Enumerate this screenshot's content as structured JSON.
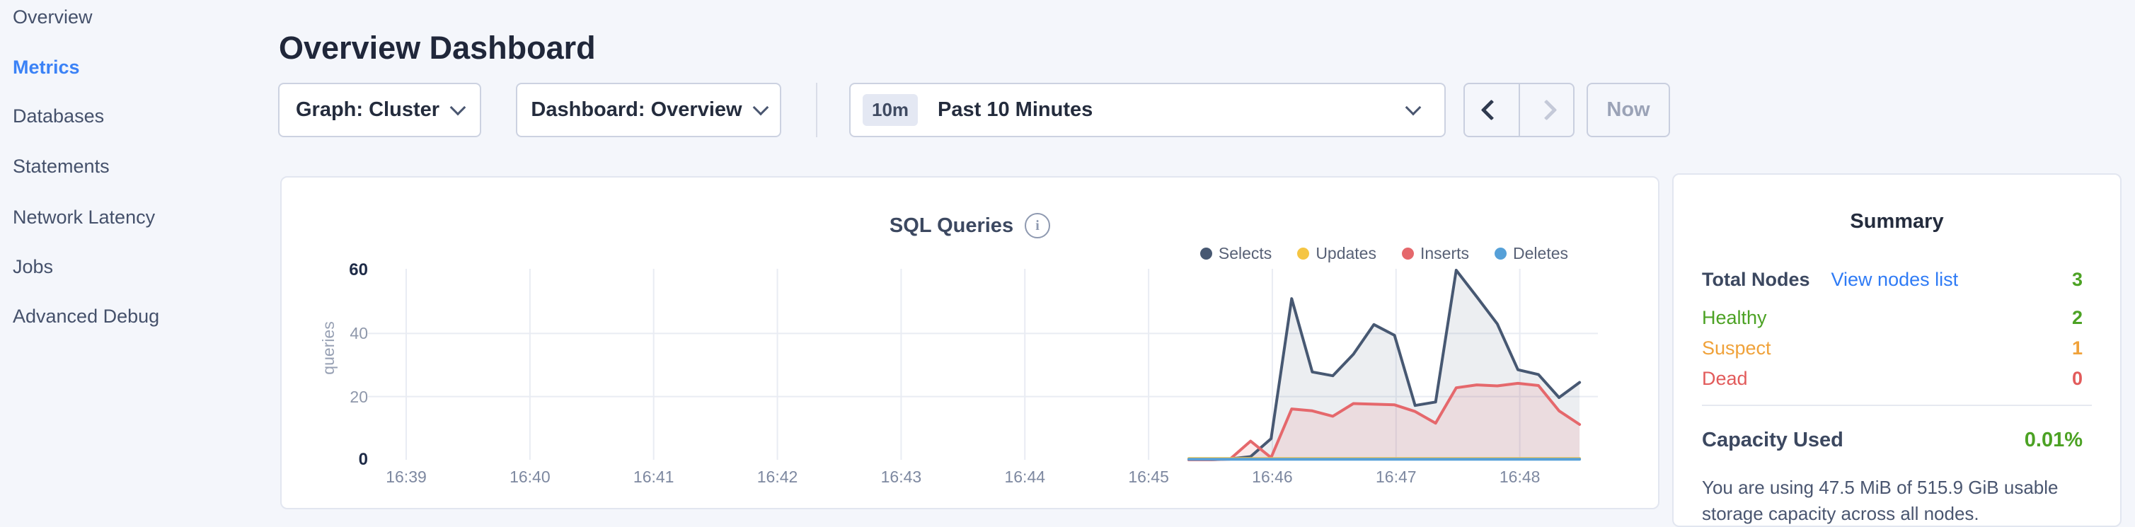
{
  "sidebar": {
    "items": [
      {
        "label": "Overview",
        "active": false
      },
      {
        "label": "Metrics",
        "active": true
      },
      {
        "label": "Databases",
        "active": false
      },
      {
        "label": "Statements",
        "active": false
      },
      {
        "label": "Network Latency",
        "active": false
      },
      {
        "label": "Jobs",
        "active": false
      },
      {
        "label": "Advanced Debug",
        "active": false
      }
    ]
  },
  "header": {
    "title": "Overview Dashboard"
  },
  "toolbar": {
    "graph_dropdown": "Graph: Cluster",
    "dashboard_dropdown": "Dashboard: Overview",
    "time_badge": "10m",
    "time_label": "Past 10 Minutes",
    "now_label": "Now"
  },
  "chart_data": {
    "type": "area",
    "title": "SQL Queries",
    "info_icon": "i",
    "ylabel": "queries",
    "ylim": [
      0,
      60
    ],
    "y_ticks": [
      0,
      20,
      40,
      60
    ],
    "x_tick_labels": [
      "16:39",
      "16:40",
      "16:41",
      "16:42",
      "16:43",
      "16:44",
      "16:45",
      "16:46",
      "16:47",
      "16:48"
    ],
    "grid": true,
    "legend_position": "top-right",
    "x": [
      "16:45:20",
      "16:45:30",
      "16:45:40",
      "16:45:50",
      "16:46:00",
      "16:46:10",
      "16:46:20",
      "16:46:30",
      "16:46:40",
      "16:46:50",
      "16:47:00",
      "16:47:10",
      "16:47:20",
      "16:47:30",
      "16:47:40",
      "16:47:50",
      "16:48:00",
      "16:48:10",
      "16:48:20",
      "16:48:30"
    ],
    "series": [
      {
        "name": "Selects",
        "color": "#475872",
        "fill": "rgba(71,88,114,0.10)",
        "values": [
          0,
          0,
          0.3,
          1,
          6.7,
          51,
          27.8,
          26.6,
          33.4,
          42.8,
          39.4,
          17.2,
          18.3,
          60,
          51.6,
          43,
          28.5,
          27,
          19.7,
          24.5
        ]
      },
      {
        "name": "Updates",
        "color": "#f5c543",
        "fill": "none",
        "values": [
          0.4,
          0.4,
          0.4,
          0.4,
          0.4,
          0.4,
          0.4,
          0.4,
          0.4,
          0.4,
          0.4,
          0.4,
          0.4,
          0.4,
          0.4,
          0.4,
          0.4,
          0.4,
          0.4,
          0.4
        ]
      },
      {
        "name": "Inserts",
        "color": "#e5686c",
        "fill": "rgba(229,104,108,0.13)",
        "values": [
          0,
          0,
          0.2,
          5.9,
          0.7,
          16.1,
          15.5,
          13.8,
          17.8,
          17.6,
          17.4,
          15.3,
          11.6,
          22.8,
          23.7,
          23.4,
          24.2,
          23.5,
          15.5,
          11.2
        ]
      },
      {
        "name": "Deletes",
        "color": "#56a0d8",
        "fill": "none",
        "values": [
          0.15,
          0.15,
          0.15,
          0.15,
          0.15,
          0.15,
          0.15,
          0.15,
          0.15,
          0.15,
          0.15,
          0.15,
          0.15,
          0.15,
          0.15,
          0.15,
          0.15,
          0.15,
          0.15,
          0.15
        ]
      }
    ]
  },
  "summary": {
    "title": "Summary",
    "rows": [
      {
        "label": "Total Nodes",
        "link": "View nodes list",
        "value": "3",
        "label_color": "#3c4860",
        "value_color": "#4ca224",
        "bold": true
      },
      {
        "label": "Healthy",
        "value": "2",
        "label_color": "#4ca224",
        "value_color": "#4ca224",
        "bold": false
      },
      {
        "label": "Suspect",
        "value": "1",
        "label_color": "#f0a23a",
        "value_color": "#f0a23a",
        "bold": false
      },
      {
        "label": "Dead",
        "value": "0",
        "label_color": "#e25b5b",
        "value_color": "#e25b5b",
        "bold": false
      }
    ],
    "capacity_label": "Capacity Used",
    "capacity_value": "0.01%",
    "capacity_description": "You are using 47.5 MiB of 515.9 GiB usable storage capacity across all nodes."
  }
}
